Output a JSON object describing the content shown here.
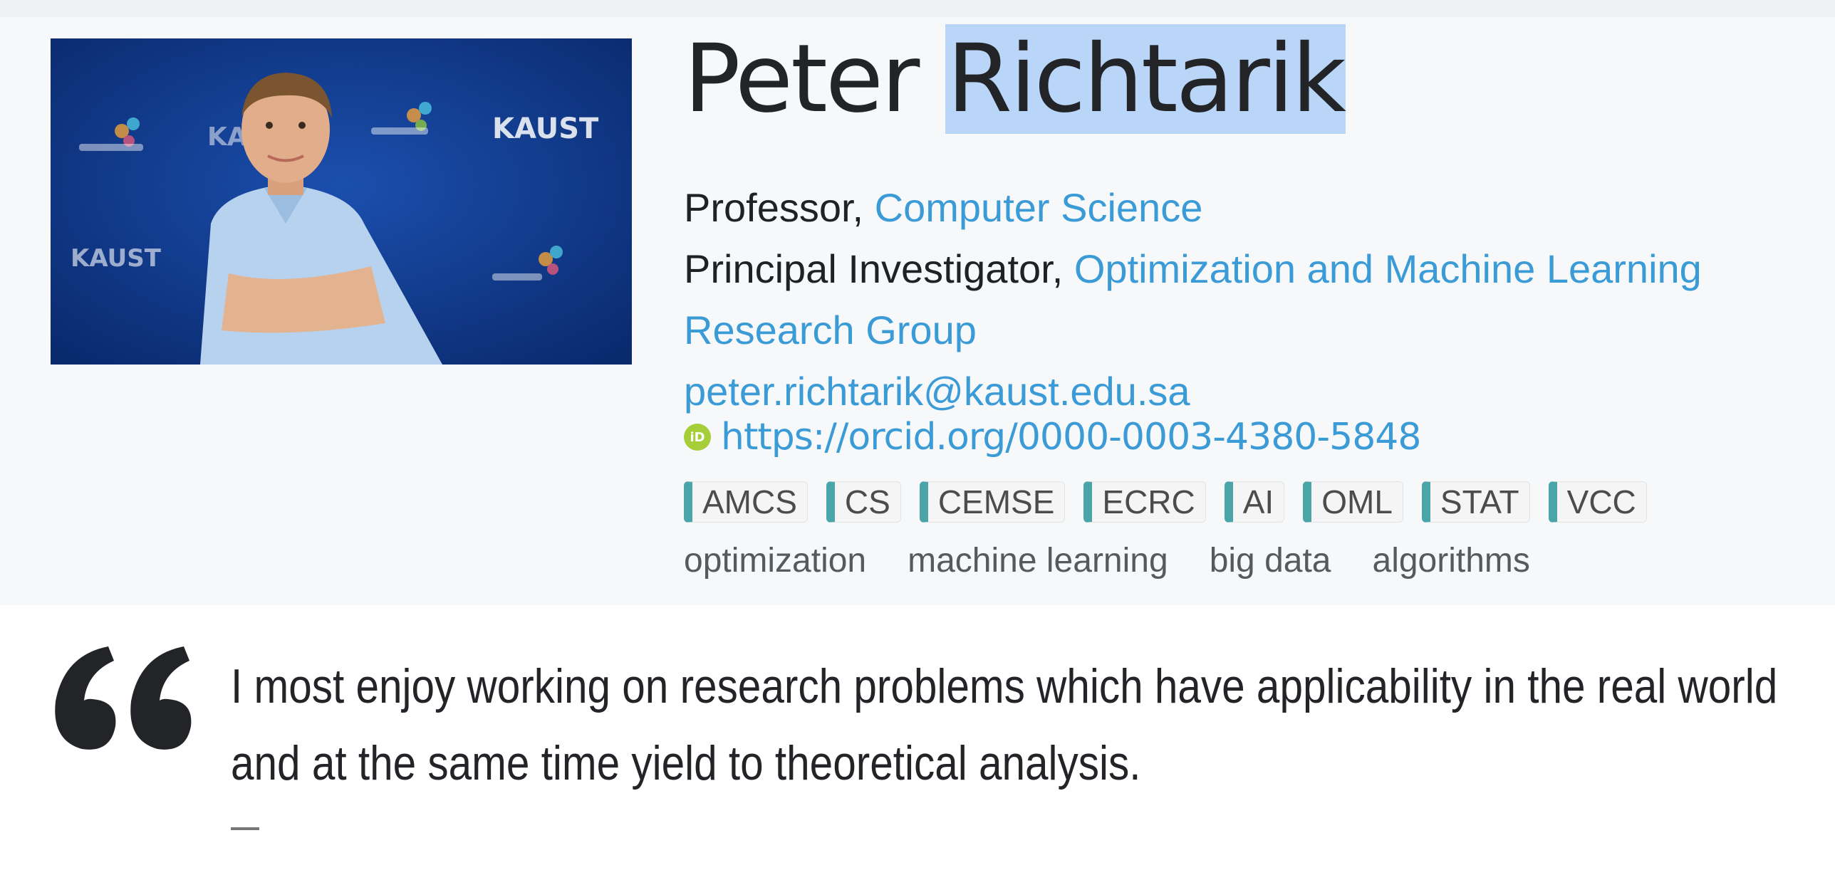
{
  "profile": {
    "name_first": "Peter ",
    "name_last": "Richtarik",
    "position_role": "Professor, ",
    "position_dept": "Computer Science",
    "pi_role": "Principal Investigator, ",
    "pi_group_line1": "Optimization and Machine Learning",
    "pi_group_line2": "Research Group",
    "email": "peter.richtarik@kaust.edu.sa",
    "orcid_badge": "iD",
    "orcid_url": "https://orcid.org/0000-0003-4380-5848",
    "tags": [
      "AMCS",
      "CS",
      "CEMSE",
      "ECRC",
      "AI",
      "OML",
      "STAT",
      "VCC"
    ],
    "keywords": [
      "optimization",
      "machine learning",
      "big data",
      "algorithms"
    ],
    "photo_backdrop_text": [
      "KAUST",
      "KAUST",
      "KAUST"
    ]
  },
  "quote": {
    "text": "I most enjoy working on research problems which have applicability in the real world and at the same time yield to theoretical analysis.",
    "attribution": "—"
  },
  "colors": {
    "link": "#3b9bd7",
    "tag_accent": "#4aa5a8",
    "selection": "#b9d5f7",
    "orcid": "#a6ce39"
  }
}
